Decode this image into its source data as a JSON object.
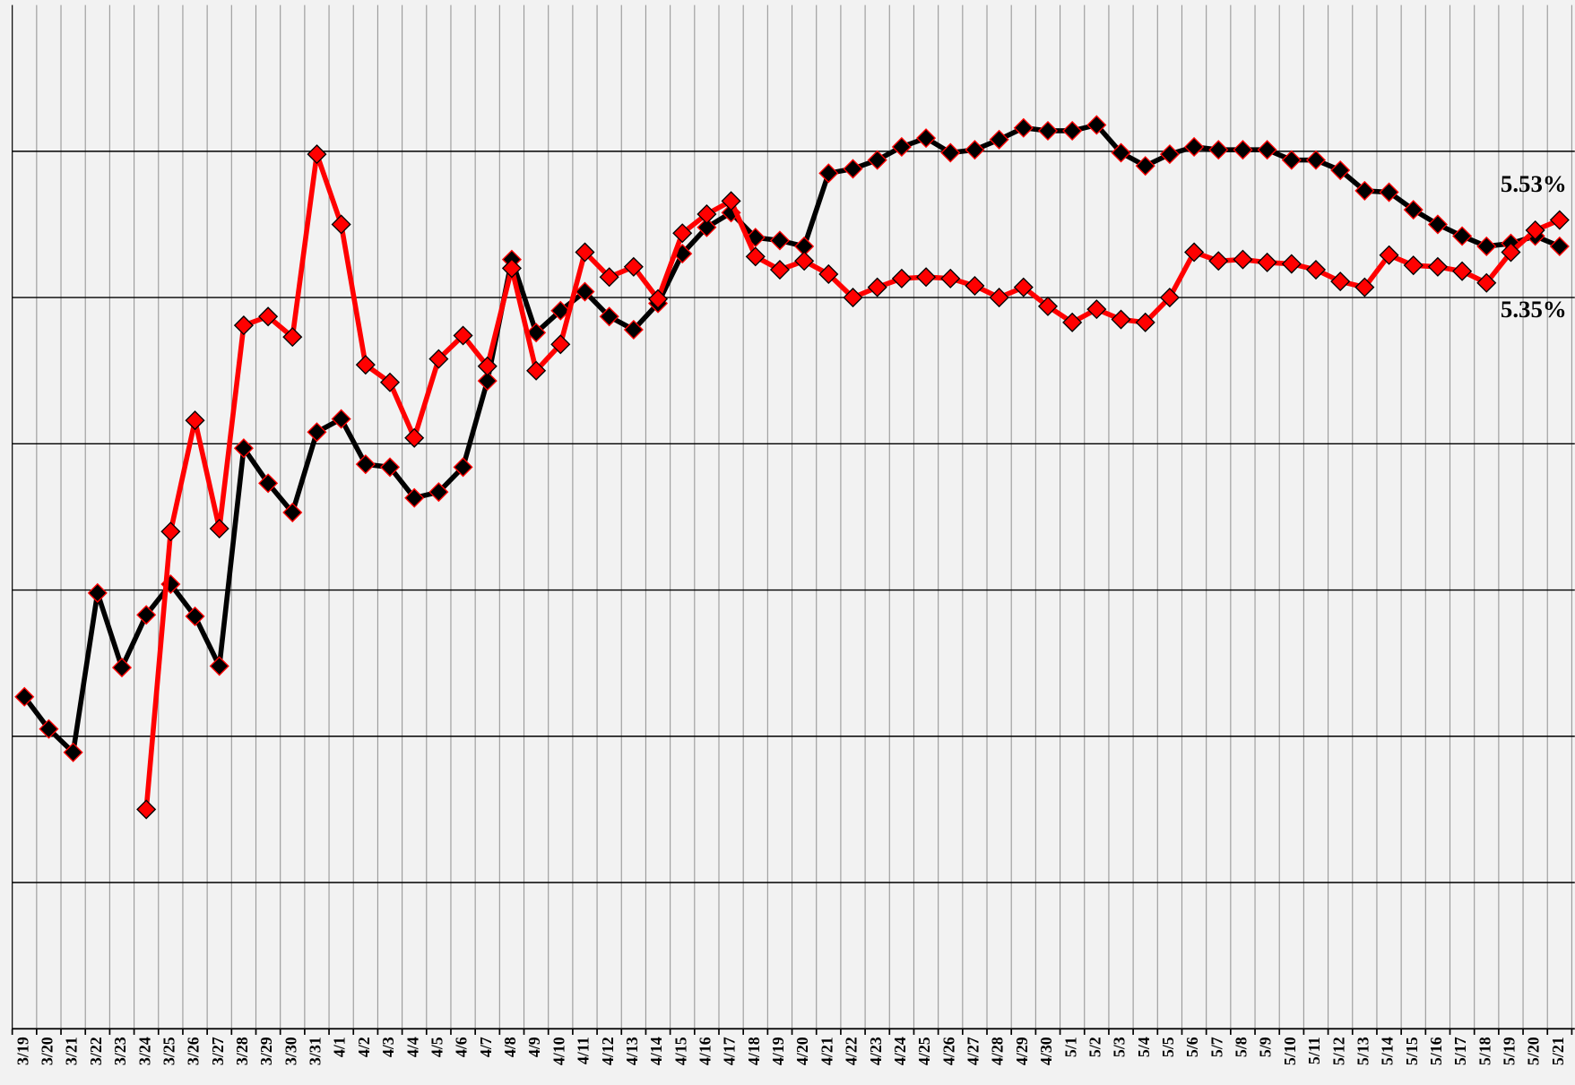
{
  "chart_data": {
    "type": "line",
    "categories": [
      "3/19",
      "3/20",
      "3/21",
      "3/22",
      "3/23",
      "3/24",
      "3/25",
      "3/26",
      "3/27",
      "3/28",
      "3/29",
      "3/30",
      "3/31",
      "4/1",
      "4/2",
      "4/3",
      "4/4",
      "4/5",
      "4/6",
      "4/7",
      "4/8",
      "4/9",
      "4/10",
      "4/11",
      "4/12",
      "4/13",
      "4/14",
      "4/15",
      "4/16",
      "4/17",
      "4/18",
      "4/19",
      "4/20",
      "4/21",
      "4/22",
      "4/23",
      "4/24",
      "4/25",
      "4/26",
      "4/27",
      "4/28",
      "4/29",
      "4/30",
      "5/1",
      "5/2",
      "5/3",
      "5/4",
      "5/5",
      "5/6",
      "5/7",
      "5/8",
      "5/9",
      "5/10",
      "5/11",
      "5/12",
      "5/13",
      "5/14",
      "5/15",
      "5/16",
      "5/17",
      "5/18",
      "5/19",
      "5/20",
      "5/21"
    ],
    "series": [
      {
        "color": "#000000",
        "values": [
          2.27,
          2.05,
          1.89,
          2.98,
          2.47,
          2.83,
          3.04,
          2.82,
          2.48,
          3.97,
          3.73,
          3.53,
          4.08,
          4.17,
          3.86,
          3.84,
          3.63,
          3.67,
          3.84,
          4.43,
          5.26,
          4.76,
          4.91,
          5.04,
          4.87,
          4.78,
          4.96,
          5.3,
          5.48,
          5.58,
          5.41,
          5.39,
          5.35,
          5.85,
          5.88,
          5.94,
          6.03,
          6.09,
          5.99,
          6.01,
          6.08,
          6.16,
          6.14,
          6.14,
          6.18,
          5.99,
          5.9,
          5.98,
          6.03,
          6.01,
          6.01,
          6.01,
          5.94,
          5.94,
          5.87,
          5.73,
          5.72,
          5.6,
          5.5,
          5.42,
          5.35,
          5.37,
          5.42,
          5.35
        ]
      },
      {
        "color": "#ff0000",
        "values": [
          null,
          null,
          null,
          null,
          null,
          1.5,
          3.4,
          4.16,
          3.42,
          4.81,
          4.87,
          4.73,
          5.98,
          5.5,
          4.54,
          4.42,
          4.04,
          4.58,
          4.74,
          4.53,
          5.2,
          4.5,
          4.68,
          5.31,
          5.14,
          5.21,
          4.99,
          5.44,
          5.57,
          5.66,
          5.28,
          5.19,
          5.25,
          5.16,
          5.0,
          5.07,
          5.13,
          5.14,
          5.13,
          5.08,
          5.0,
          5.07,
          4.94,
          4.83,
          4.92,
          4.85,
          4.83,
          5.0,
          5.31,
          5.25,
          5.26,
          5.24,
          5.23,
          5.19,
          5.11,
          5.07,
          5.29,
          5.22,
          5.21,
          5.18,
          5.1,
          5.31,
          5.46,
          5.53
        ]
      }
    ],
    "annotations": [
      "5.53%",
      "5.35%"
    ],
    "ylim": [
      0,
      7
    ],
    "yticks": [
      1,
      2,
      3,
      4,
      5,
      6
    ],
    "grid": true
  }
}
